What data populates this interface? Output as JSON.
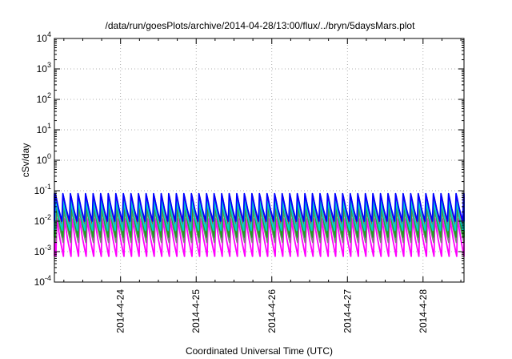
{
  "chart_data": {
    "type": "line",
    "title": "/data/run/goesPlots/archive/2014-04-28/13:00/flux/../bryn/5daysMars.plot",
    "xlabel": "Coordinated Universal Time (UTC)",
    "ylabel": "cSv/day",
    "y_scale": "log",
    "ylim": [
      0.0001,
      10000
    ],
    "y_ticks": [
      {
        "base": "10",
        "exp": "4",
        "value": 10000
      },
      {
        "base": "10",
        "exp": "3",
        "value": 1000
      },
      {
        "base": "10",
        "exp": "2",
        "value": 100
      },
      {
        "base": "10",
        "exp": "1",
        "value": 10
      },
      {
        "base": "10",
        "exp": "0",
        "value": 1
      },
      {
        "base": "10",
        "exp": "-1",
        "value": 0.1
      },
      {
        "base": "10",
        "exp": "-2",
        "value": 0.01
      },
      {
        "base": "10",
        "exp": "-3",
        "value": 0.001
      },
      {
        "base": "10",
        "exp": "-4",
        "value": 0.0001
      }
    ],
    "xlim": [
      "2014-04-23 03:00",
      "2014-04-28 13:00"
    ],
    "x_ticks": [
      "2014-4-24",
      "2014-4-25",
      "2014-4-26",
      "2014-4-27",
      "2014-4-28"
    ],
    "grid": true,
    "cycles_per_day": 10,
    "series": [
      {
        "color": "#0000ff",
        "peak": 0.08,
        "trough": 0.01
      },
      {
        "color": "#00d0d0",
        "peak": 0.045,
        "trough": 0.005
      },
      {
        "color": "#cc2020",
        "peak": 0.065,
        "trough": 0.007
      },
      {
        "color": "#20a020",
        "peak": 0.035,
        "trough": 0.003
      },
      {
        "color": "#7f7f7f",
        "peak": 0.025,
        "trough": 0.002
      },
      {
        "color": "#ff00ff",
        "peak": 0.012,
        "trough": 0.0007
      }
    ]
  }
}
